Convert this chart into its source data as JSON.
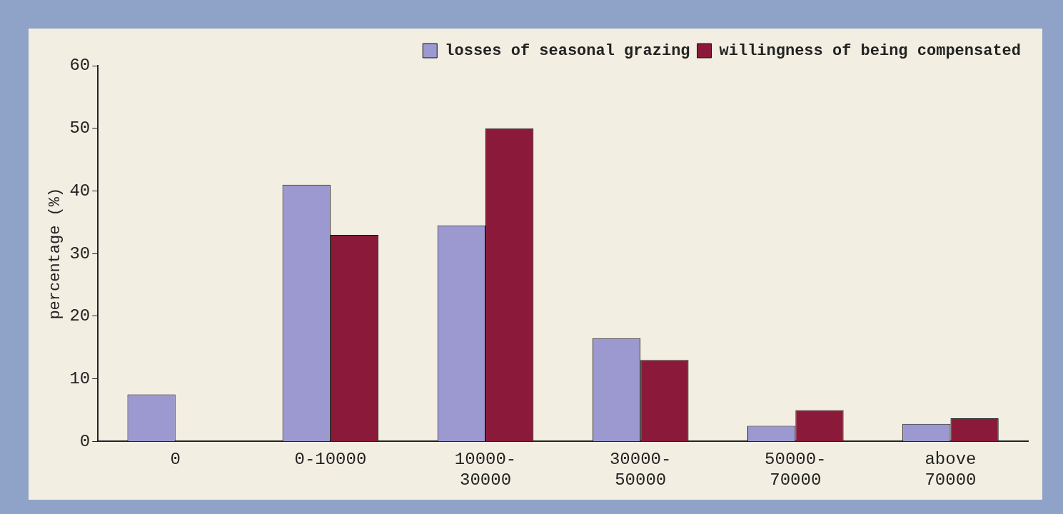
{
  "chart_data": {
    "type": "bar",
    "categories": [
      "0",
      "0-10000",
      "10000-30000",
      "30000-50000",
      "50000-70000",
      "above 70000"
    ],
    "series": [
      {
        "name": "losses of seasonal grazing",
        "color": "#9c98d0",
        "values": [
          7.5,
          41,
          34.5,
          16.5,
          2.5,
          2.8
        ]
      },
      {
        "name": "willingness of being compensated",
        "color": "#8b1a3a",
        "values": [
          0,
          33,
          50,
          13,
          5,
          3.7
        ]
      }
    ],
    "ylabel": "percentage (%)",
    "ylim": [
      0,
      60
    ],
    "yticks": [
      0,
      10,
      20,
      30,
      40,
      50,
      60
    ],
    "grid": false,
    "legend": "top right"
  }
}
